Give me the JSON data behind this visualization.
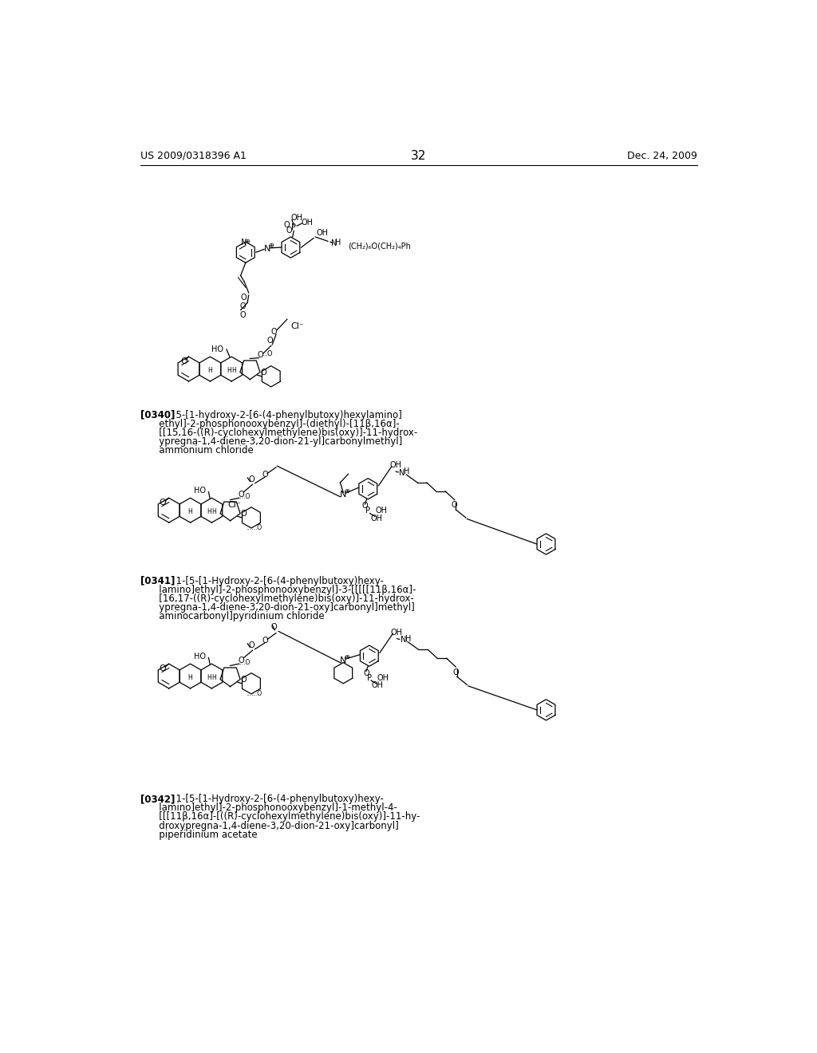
{
  "page_number": "32",
  "patent_number": "US 2009/0318396 A1",
  "patent_date": "Dec. 24, 2009",
  "background_color": "#ffffff",
  "text_color": "#000000",
  "compound_340_lines": [
    "[0340]   5-[1-hydroxy-2-[6-(4-phenylbutoxy)hexylamino]",
    "   ethyl]-2-phosphonooxybenzyl]-(diethyl)-[11β,16α]-",
    "   [[15,16-((R)-cyclohexylmethylene)bis(oxy)]-11-hydrox-",
    "   ypregna-1,4-diene-3,20-dion-21-yl]carbonylmethyl]",
    "   ammonium chloride"
  ],
  "compound_341_lines": [
    "[0341]   1-[5-[1-Hydroxy-2-[6-(4-phenylbutoxy)hexy-",
    "   lamino]ethyl]-2-phosphonooxybenzyl]-3-[[[[[11β,16α]-",
    "   [16,17-((R)-cyclohexylmethylene)bis(oxy)]-11-hydrox-",
    "   ypregna-1,4-diene-3,20-dion-21-oxy]carbonyl]methyl]",
    "   aminocarbonyl]pyridinium chloride"
  ],
  "compound_342_lines": [
    "[0342]   1-[5-[1-Hydroxy-2-[6-(4-phenylbutoxy)hexy-",
    "   lamino]ethyl]-2-phosphonooxybenzyl]-1-methyl-4-",
    "   [[[11β,16α]-[((R)-cyclohexylmethylene)bis(oxy)]-11-hy-",
    "   droxypregna-1,4-diene-3,20-dion-21-oxy]carbonyl]",
    "   piperidinium acetate"
  ]
}
